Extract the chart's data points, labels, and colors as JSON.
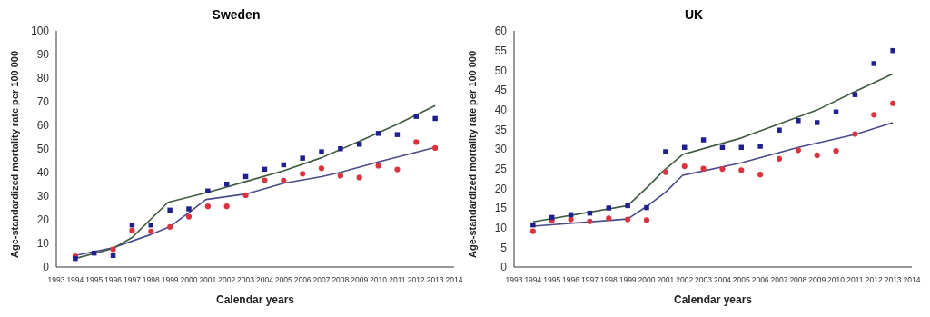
{
  "chart_data": [
    {
      "type": "scatter",
      "title": "Sweden",
      "xlabel": "Calendar years",
      "ylabel": "Age-standardized mortality rate per 100 000",
      "xlim": [
        1993,
        2014
      ],
      "xticks": [
        1993,
        1994,
        1995,
        1996,
        1997,
        1998,
        1999,
        2000,
        2001,
        2002,
        2003,
        2004,
        2005,
        2006,
        2007,
        2008,
        2009,
        2010,
        2011,
        2012,
        2013,
        2014
      ],
      "ylim": [
        0,
        100
      ],
      "yticks": [
        0,
        10,
        20,
        30,
        40,
        50,
        60,
        70,
        80,
        90,
        100
      ],
      "grid": false,
      "legend": false,
      "series": [
        {
          "type": "scatter",
          "marker": "square",
          "color": "#1f1f8f",
          "x": [
            1994,
            1995,
            1996,
            1997,
            1998,
            1999,
            2000,
            2001,
            2002,
            2003,
            2004,
            2005,
            2006,
            2007,
            2008,
            2009,
            2010,
            2011,
            2012,
            2013
          ],
          "values": [
            3.6,
            5.9,
            4.9,
            17.8,
            17.8,
            24.1,
            24.6,
            32.2,
            35.1,
            38.3,
            41.4,
            43.3,
            46.1,
            48.8,
            50.1,
            52.0,
            56.6,
            56.1,
            63.8,
            62.9
          ]
        },
        {
          "type": "scatter",
          "marker": "circle",
          "color": "#d9343f",
          "x": [
            1994,
            1995,
            1996,
            1997,
            1998,
            1999,
            2000,
            2001,
            2002,
            2003,
            2004,
            2005,
            2006,
            2007,
            2008,
            2009,
            2010,
            2011,
            2012,
            2013
          ],
          "values": [
            4.6,
            null,
            7.5,
            15.4,
            15.1,
            17.0,
            21.3,
            25.7,
            25.7,
            30.4,
            36.7,
            36.6,
            39.5,
            41.8,
            38.7,
            37.9,
            42.9,
            41.3,
            52.9,
            50.4
          ]
        },
        {
          "type": "line",
          "marker": "none",
          "color": "#3f5a3f",
          "x": [
            1994,
            1996,
            1997,
            1998.9,
            2001,
            2003,
            2005,
            2007,
            2009,
            2011,
            2013
          ],
          "values": [
            3.6,
            7.9,
            12.5,
            27.4,
            31.6,
            36.2,
            40.8,
            46.3,
            53.3,
            60.5,
            68.4
          ]
        },
        {
          "type": "line",
          "marker": "none",
          "color": "#4a4a8a",
          "x": [
            1994,
            1996,
            1998,
            1999,
            2000,
            2000.9,
            2003,
            2005,
            2007,
            2008,
            2010,
            2013
          ],
          "values": [
            4.9,
            8.2,
            13.8,
            17.1,
            23.0,
            28.6,
            30.9,
            35.5,
            38.3,
            40.1,
            44.5,
            50.7
          ]
        }
      ]
    },
    {
      "type": "scatter",
      "title": "UK",
      "xlabel": "Calendar years",
      "ylabel": "Age-standardized mortality rate per 100 000",
      "xlim": [
        1993,
        2014
      ],
      "xticks": [
        1993,
        1994,
        1995,
        1996,
        1997,
        1998,
        1999,
        2000,
        2001,
        2002,
        2003,
        2004,
        2005,
        2006,
        2007,
        2008,
        2009,
        2010,
        2011,
        2012,
        2013,
        2014
      ],
      "ylim": [
        0,
        60
      ],
      "yticks": [
        0,
        5,
        10,
        15,
        20,
        25,
        30,
        35,
        40,
        45,
        50,
        55,
        60
      ],
      "grid": false,
      "legend": false,
      "series": [
        {
          "type": "scatter",
          "marker": "square",
          "color": "#1f1f8f",
          "x": [
            1994,
            1995,
            1996,
            1997,
            1998,
            1999,
            2000,
            2001,
            2002,
            2003,
            2004,
            2005,
            2006,
            2007,
            2008,
            2009,
            2010,
            2011,
            2012,
            2013
          ],
          "values": [
            10.7,
            12.6,
            13.3,
            13.7,
            15.0,
            15.6,
            15.1,
            29.3,
            30.4,
            32.3,
            30.4,
            30.4,
            30.7,
            34.8,
            37.2,
            36.7,
            39.4,
            43.8,
            51.7,
            55.0
          ]
        },
        {
          "type": "scatter",
          "marker": "circle",
          "color": "#d9343f",
          "x": [
            1994,
            1995,
            1996,
            1997,
            1998,
            1999,
            2000,
            2001,
            2002,
            2003,
            2004,
            2005,
            2006,
            2007,
            2008,
            2009,
            2010,
            2011,
            2012,
            2013
          ],
          "values": [
            9.1,
            11.8,
            12.1,
            11.6,
            12.4,
            12.1,
            11.9,
            24.1,
            25.6,
            25.0,
            24.9,
            24.6,
            23.5,
            27.5,
            29.7,
            28.4,
            29.5,
            33.8,
            38.7,
            41.6
          ]
        },
        {
          "type": "line",
          "marker": "none",
          "color": "#3f5a3f",
          "x": [
            1994,
            1999,
            2000,
            2000.9,
            2001.9,
            2005,
            2009,
            2011,
            2013
          ],
          "values": [
            11.5,
            15.6,
            20.1,
            24.5,
            28.6,
            32.8,
            39.9,
            44.6,
            49.1
          ]
        },
        {
          "type": "line",
          "marker": "none",
          "color": "#4a4a8a",
          "x": [
            1994,
            1999,
            2000,
            2001,
            2001.9,
            2005,
            2008,
            2011,
            2013
          ],
          "values": [
            10.4,
            12.2,
            15.4,
            19.0,
            23.3,
            26.5,
            30.4,
            33.7,
            36.7
          ]
        }
      ]
    }
  ]
}
